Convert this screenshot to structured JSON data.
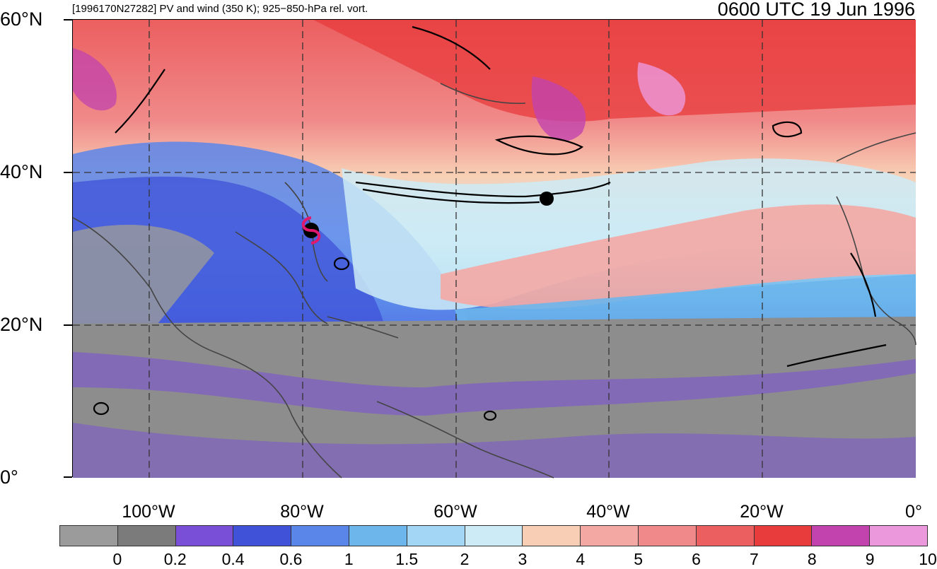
{
  "header": {
    "left_title": "[1996170N27282] PV and wind (350 K); 925−850-hPa rel. vort.",
    "right_title": "0600 UTC 19 Jun 1996"
  },
  "axes": {
    "lat_labels": [
      "60°N",
      "40°N",
      "20°N",
      "0°"
    ],
    "lon_labels": [
      "100°W",
      "80°W",
      "60°W",
      "40°W",
      "20°W",
      "0°"
    ]
  },
  "map": {
    "extent": {
      "lon_min": -110,
      "lon_max": 0,
      "lat_min": 0,
      "lat_max": 60
    },
    "grid_lons": [
      -100,
      -80,
      -60,
      -40,
      -20
    ],
    "grid_lats": [
      20,
      40
    ],
    "storm_symbol": {
      "lon": -79,
      "lat": 32.3,
      "color": "#e0196e",
      "icon": "tropical-cyclone-icon"
    },
    "marker": {
      "lon": -49,
      "lat": 36.5,
      "icon": "black-dot"
    }
  },
  "colorbar": {
    "colors": [
      "#9b9b9b",
      "#7b7b7b",
      "#7a4fd8",
      "#3f52d8",
      "#5a86ea",
      "#6cb6ec",
      "#a2d6f4",
      "#cdebf6",
      "#f8cfb4",
      "#f4a8a4",
      "#f08a8a",
      "#ec5f60",
      "#e83b3c",
      "#c243ae",
      "#ec98dc"
    ],
    "labels": [
      "0",
      "0.2",
      "0.4",
      "0.6",
      "1",
      "1.5",
      "2",
      "3",
      "4",
      "5",
      "6",
      "7",
      "8",
      "9",
      "10"
    ]
  }
}
